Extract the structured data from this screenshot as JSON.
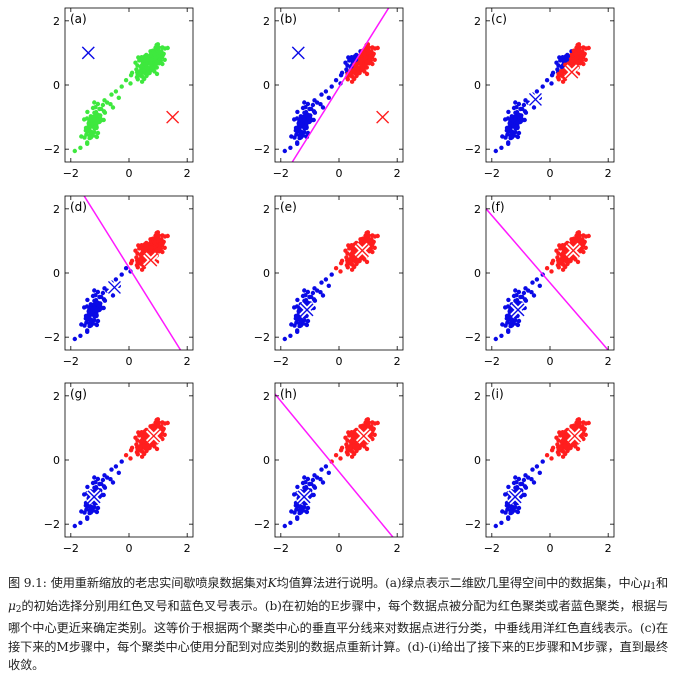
{
  "colors": {
    "green": "#3ee83e",
    "red": "#ff1e1e",
    "blue": "#0a0ae6",
    "magenta": "#ff19ff",
    "white": "#ffffff",
    "axis": "#000000"
  },
  "chart_data": [
    {
      "id": "a",
      "type": "scatter",
      "panel_label": "(a)",
      "xlim": [
        -2.2,
        2.2
      ],
      "ylim": [
        -2.4,
        2.4
      ],
      "xticks": [
        -2,
        0,
        2
      ],
      "yticks": [
        -2,
        0,
        2
      ],
      "xtick_labels": [
        "−2",
        "0",
        "2"
      ],
      "ytick_labels": [
        "−2",
        "0",
        "2"
      ],
      "assignment": "none",
      "centers": [
        {
          "x": -1.4,
          "y": 1.0,
          "color": "blue",
          "style": "plain"
        },
        {
          "x": 1.5,
          "y": -1.0,
          "color": "red",
          "style": "plain"
        }
      ],
      "boundary": null
    },
    {
      "id": "b",
      "type": "scatter",
      "panel_label": "(b)",
      "xlim": [
        -2.2,
        2.2
      ],
      "ylim": [
        -2.4,
        2.4
      ],
      "xticks": [
        -2,
        0,
        2
      ],
      "yticks": [
        -2,
        0,
        2
      ],
      "xtick_labels": [
        "−2",
        "0",
        "2"
      ],
      "ytick_labels": [
        "−2",
        "0",
        "2"
      ],
      "assignment": {
        "blue_above_line": true
      },
      "centers": [
        {
          "x": -1.4,
          "y": 1.0,
          "color": "blue",
          "style": "plain"
        },
        {
          "x": 1.5,
          "y": -1.0,
          "color": "red",
          "style": "plain"
        }
      ],
      "boundary": {
        "through": [
          0.05,
          0.0
        ],
        "slope": 1.45
      }
    },
    {
      "id": "c",
      "type": "scatter",
      "panel_label": "(c)",
      "xlim": [
        -2.2,
        2.2
      ],
      "ylim": [
        -2.4,
        2.4
      ],
      "xticks": [
        -2,
        0,
        2
      ],
      "yticks": [
        -2,
        0,
        2
      ],
      "xtick_labels": [
        "−2",
        "0",
        "2"
      ],
      "ytick_labels": [
        "−2",
        "0",
        "2"
      ],
      "assignment": {
        "blue_above_line": true
      },
      "centers": [
        {
          "x": -0.5,
          "y": -0.45,
          "color": "blue",
          "style": "outlined"
        },
        {
          "x": 0.75,
          "y": 0.4,
          "color": "red",
          "style": "outlined"
        }
      ],
      "boundary": null
    },
    {
      "id": "d",
      "type": "scatter",
      "panel_label": "(d)",
      "xlim": [
        -2.2,
        2.2
      ],
      "ylim": [
        -2.4,
        2.4
      ],
      "xticks": [
        -2,
        0,
        2
      ],
      "yticks": [
        -2,
        0,
        2
      ],
      "xtick_labels": [
        "−2",
        "0",
        "2"
      ],
      "ytick_labels": [
        "−2",
        "0",
        "2"
      ],
      "assignment": {
        "blue_above_line": false
      },
      "centers": [
        {
          "x": -0.5,
          "y": -0.45,
          "color": "blue",
          "style": "outlined"
        },
        {
          "x": 0.75,
          "y": 0.4,
          "color": "red",
          "style": "outlined"
        }
      ],
      "boundary": {
        "through": [
          0.15,
          -0.05
        ],
        "slope": -1.45
      }
    },
    {
      "id": "e",
      "type": "scatter",
      "panel_label": "(e)",
      "xlim": [
        -2.2,
        2.2
      ],
      "ylim": [
        -2.4,
        2.4
      ],
      "xticks": [
        -2,
        0,
        2
      ],
      "yticks": [
        -2,
        0,
        2
      ],
      "xtick_labels": [
        "−2",
        "0",
        "2"
      ],
      "ytick_labels": [
        "−2",
        "0",
        "2"
      ],
      "assignment": {
        "blue_above_line": false
      },
      "centers": [
        {
          "x": -1.1,
          "y": -1.15,
          "color": "blue",
          "style": "outlined"
        },
        {
          "x": 0.8,
          "y": 0.7,
          "color": "red",
          "style": "outlined"
        }
      ],
      "boundary": null
    },
    {
      "id": "f",
      "type": "scatter",
      "panel_label": "(f)",
      "xlim": [
        -2.2,
        2.2
      ],
      "ylim": [
        -2.4,
        2.4
      ],
      "xticks": [
        -2,
        0,
        2
      ],
      "yticks": [
        -2,
        0,
        2
      ],
      "xtick_labels": [
        "−2",
        "0",
        "2"
      ],
      "ytick_labels": [
        "−2",
        "0",
        "2"
      ],
      "assignment": {
        "blue_above_line": false
      },
      "centers": [
        {
          "x": -1.1,
          "y": -1.15,
          "color": "blue",
          "style": "outlined"
        },
        {
          "x": 0.8,
          "y": 0.7,
          "color": "red",
          "style": "outlined"
        }
      ],
      "boundary": {
        "through": [
          -0.1,
          -0.2
        ],
        "slope": -1.05
      }
    },
    {
      "id": "g",
      "type": "scatter",
      "panel_label": "(g)",
      "xlim": [
        -2.2,
        2.2
      ],
      "ylim": [
        -2.4,
        2.4
      ],
      "xticks": [
        -2,
        0,
        2
      ],
      "yticks": [
        -2,
        0,
        2
      ],
      "xtick_labels": [
        "−2",
        "0",
        "2"
      ],
      "ytick_labels": [
        "−2",
        "0",
        "2"
      ],
      "assignment": {
        "blue_above_line": false
      },
      "centers": [
        {
          "x": -1.2,
          "y": -1.15,
          "color": "blue",
          "style": "outlined"
        },
        {
          "x": 0.85,
          "y": 0.75,
          "color": "red",
          "style": "outlined"
        }
      ],
      "boundary": null
    },
    {
      "id": "h",
      "type": "scatter",
      "panel_label": "(h)",
      "xlim": [
        -2.2,
        2.2
      ],
      "ylim": [
        -2.4,
        2.4
      ],
      "xticks": [
        -2,
        0,
        2
      ],
      "yticks": [
        -2,
        0,
        2
      ],
      "xtick_labels": [
        "−2",
        "0",
        "2"
      ],
      "ytick_labels": [
        "−2",
        "0",
        "2"
      ],
      "assignment": {
        "blue_above_line": false
      },
      "centers": [
        {
          "x": -1.2,
          "y": -1.15,
          "color": "blue",
          "style": "outlined"
        },
        {
          "x": 0.85,
          "y": 0.75,
          "color": "red",
          "style": "outlined"
        }
      ],
      "boundary": {
        "through": [
          -0.15,
          -0.2
        ],
        "slope": -1.1
      }
    },
    {
      "id": "i",
      "type": "scatter",
      "panel_label": "(i)",
      "xlim": [
        -2.2,
        2.2
      ],
      "ylim": [
        -2.4,
        2.4
      ],
      "xticks": [
        -2,
        0,
        2
      ],
      "yticks": [
        -2,
        0,
        2
      ],
      "xtick_labels": [
        "−2",
        "0",
        "2"
      ],
      "ytick_labels": [
        "−2",
        "0",
        "2"
      ],
      "assignment": {
        "blue_above_line": false
      },
      "centers": [
        {
          "x": -1.2,
          "y": -1.15,
          "color": "blue",
          "style": "outlined"
        },
        {
          "x": 0.85,
          "y": 0.75,
          "color": "red",
          "style": "outlined"
        }
      ],
      "boundary": null
    }
  ],
  "caption": {
    "number": "图 9.1:",
    "line1_a": "使用重新缩放的老忠实间歇喷泉数据集对",
    "K": "K",
    "line1_b": "均值算法进行说明。(a)绿点表示二维欧几里得空间中的数据集，中心",
    "mu": "μ",
    "sub1": "1",
    "and": "和",
    "sub2": "2",
    "rest": "的初始选择分别用红色叉号和蓝色叉号表示。(b)在初始的E步骤中，每个数据点被分配为红色聚类或者蓝色聚类，根据与哪个中心更近来确定类别。这等价于根据两个聚类中心的垂直平分线来对数据点进行分类，中垂线用洋红色直线表示。(c)在接下来的M步骤中，每个聚类中心使用分配到对应类别的数据点重新计算。(d)-(i)给出了接下来的E步骤和M步骤，直到最终收敛。"
  }
}
